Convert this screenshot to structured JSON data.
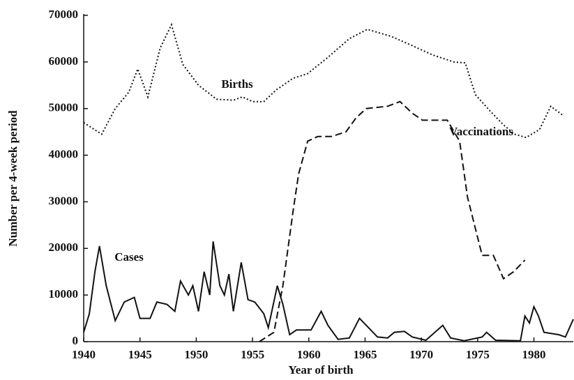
{
  "chart_data": {
    "type": "line",
    "x_label": "Year of birth",
    "y_label": "Number per 4-week period",
    "xlim": [
      1940,
      1983.5
    ],
    "xticks": [
      1940,
      1945,
      1950,
      1955,
      1960,
      1965,
      1970,
      1975,
      1980
    ],
    "ylim": [
      0,
      70000
    ],
    "yticks": [
      0,
      10000,
      20000,
      30000,
      40000,
      50000,
      60000,
      70000
    ],
    "grid": false,
    "series": [
      {
        "name": "Births",
        "color": "#111111",
        "linestyle": "dotted",
        "x": [
          1940.0,
          1941.6,
          1942.8,
          1944.0,
          1944.8,
          1945.7,
          1946.8,
          1947.8,
          1948.8,
          1950.2,
          1951.8,
          1953.3,
          1954.1,
          1955.0,
          1956.0,
          1957.1,
          1958.6,
          1959.9,
          1961.7,
          1963.6,
          1965.2,
          1967.3,
          1969.2,
          1971.0,
          1972.9,
          1973.9,
          1974.8,
          1976.1,
          1977.3,
          1978.3,
          1979.3,
          1980.5,
          1981.5,
          1982.6
        ],
        "values": [
          47000,
          44500,
          50000,
          53500,
          58500,
          52500,
          63000,
          68000,
          59500,
          55000,
          52000,
          51800,
          52500,
          51500,
          51500,
          54000,
          56500,
          57500,
          61000,
          65000,
          67000,
          65500,
          63500,
          61500,
          60000,
          59800,
          53000,
          49500,
          46500,
          44500,
          43800,
          45500,
          50500,
          48500
        ]
      },
      {
        "name": "Vaccinations",
        "color": "#111111",
        "linestyle": "dashed",
        "x": [
          1955.6,
          1956.9,
          1957.7,
          1958.6,
          1959.1,
          1959.9,
          1960.8,
          1962.0,
          1963.3,
          1964.2,
          1965.1,
          1967.0,
          1968.1,
          1969.2,
          1970.1,
          1972.3,
          1973.4,
          1974.1,
          1975.4,
          1976.4,
          1977.3,
          1978.2,
          1979.2
        ],
        "values": [
          0,
          2000,
          12000,
          28000,
          36000,
          43000,
          44000,
          44000,
          45000,
          48000,
          50000,
          50500,
          51500,
          49000,
          47500,
          47500,
          43000,
          31000,
          18500,
          18500,
          13500,
          15000,
          17500
        ]
      },
      {
        "name": "Cases",
        "color": "#111111",
        "linestyle": "solid",
        "x": [
          1940.0,
          1940.5,
          1941.0,
          1941.4,
          1942.0,
          1942.8,
          1943.6,
          1944.5,
          1945.0,
          1945.9,
          1946.5,
          1947.4,
          1948.1,
          1948.6,
          1949.3,
          1949.7,
          1950.2,
          1950.7,
          1951.2,
          1951.5,
          1952.1,
          1952.5,
          1952.9,
          1953.3,
          1954.0,
          1954.6,
          1955.2,
          1956.0,
          1956.4,
          1957.2,
          1957.7,
          1958.3,
          1958.9,
          1960.2,
          1961.1,
          1961.7,
          1962.6,
          1963.6,
          1964.5,
          1965.1,
          1966.1,
          1967.0,
          1967.6,
          1968.5,
          1969.2,
          1970.4,
          1971.9,
          1972.6,
          1973.8,
          1975.4,
          1975.8,
          1976.6,
          1978.8,
          1979.2,
          1979.6,
          1980.0,
          1980.4,
          1980.9,
          1982.2,
          1982.8,
          1983.5
        ],
        "values": [
          2000,
          6000,
          15000,
          20500,
          12000,
          4500,
          8500,
          9500,
          5000,
          5000,
          8500,
          8000,
          6500,
          13000,
          10000,
          12000,
          6500,
          15000,
          10000,
          21500,
          12000,
          10000,
          14500,
          6500,
          17000,
          9000,
          8500,
          6000,
          3000,
          12000,
          8000,
          1500,
          2500,
          2500,
          6500,
          3500,
          500,
          800,
          5000,
          3500,
          1000,
          800,
          2000,
          2200,
          1000,
          300,
          3500,
          800,
          200,
          1000,
          2000,
          300,
          200,
          5500,
          4000,
          7500,
          5500,
          2000,
          1500,
          1000,
          4800
        ]
      }
    ]
  }
}
